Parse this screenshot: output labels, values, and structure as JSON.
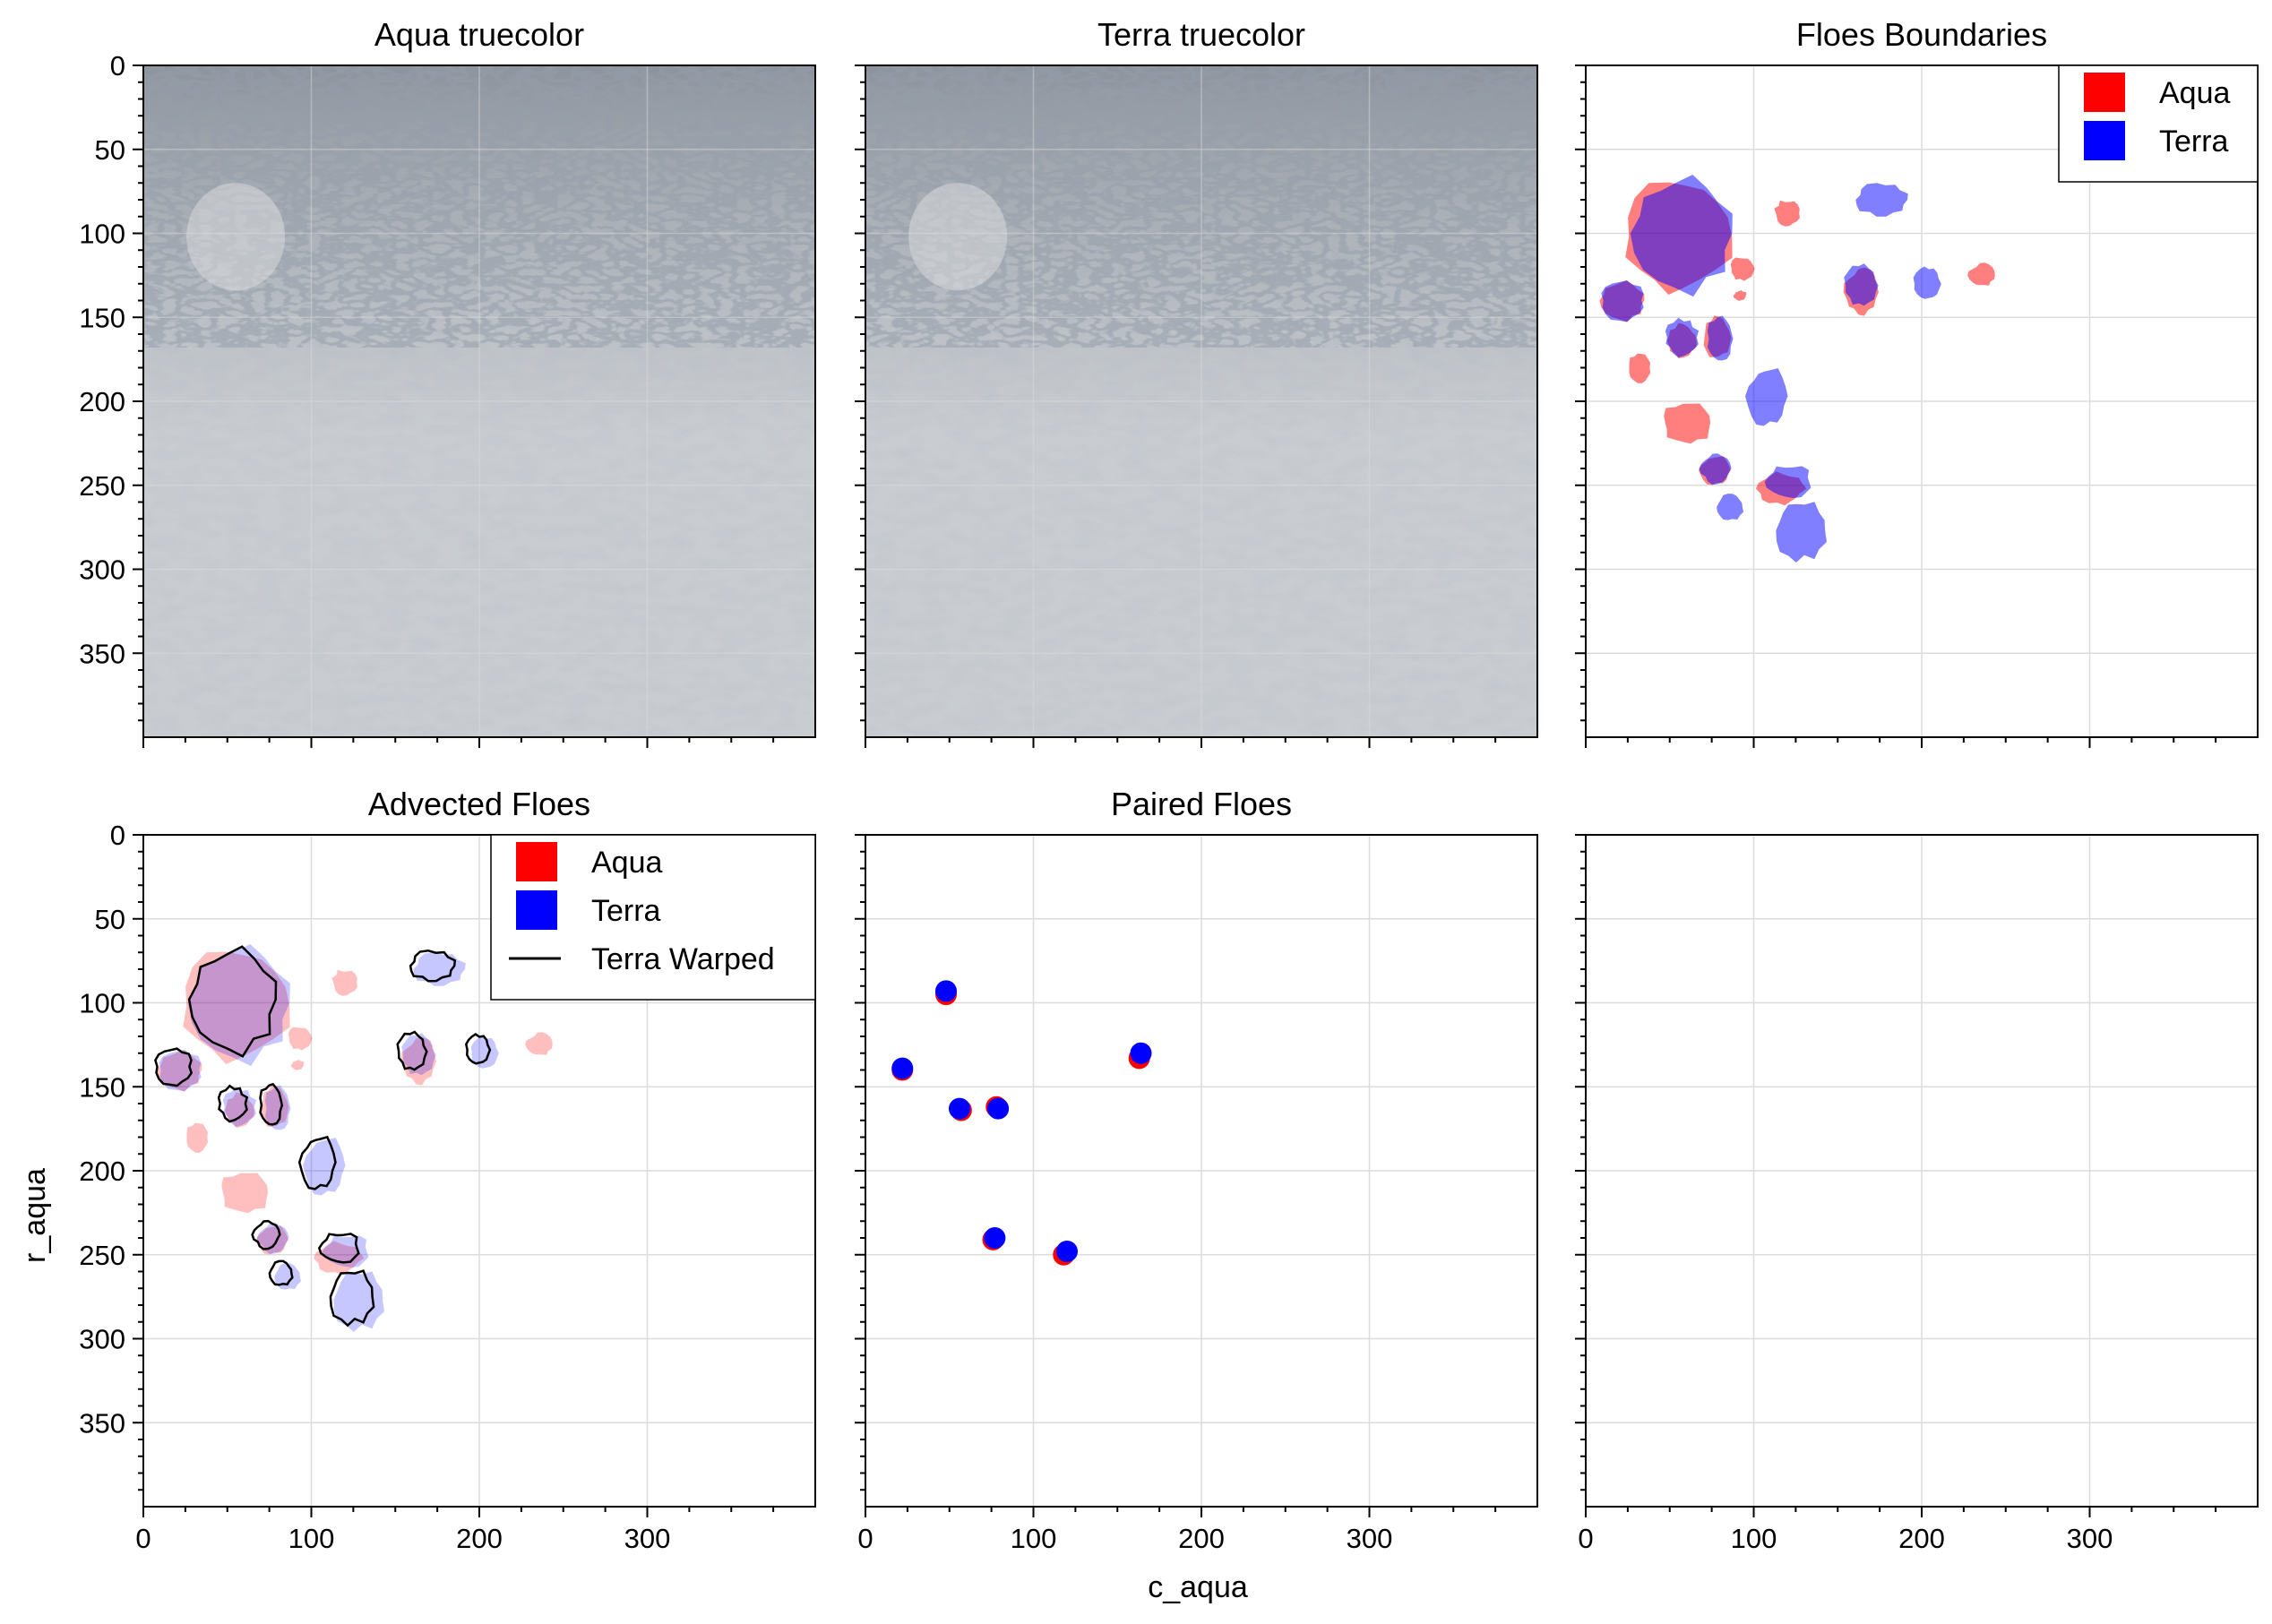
{
  "figure": {
    "xlabel": "c_aqua",
    "ylabel": "r_aqua"
  },
  "colors": {
    "aqua": "#ff0000",
    "terra": "#0000ff",
    "warped": "#000000",
    "grid": "#dcdcdc"
  },
  "panels": [
    {
      "id": "aqua-truecolor",
      "title": "Aqua truecolor",
      "type": "image"
    },
    {
      "id": "terra-truecolor",
      "title": "Terra truecolor",
      "type": "image"
    },
    {
      "id": "floes-boundaries",
      "title": "Floes Boundaries",
      "type": "overlay",
      "legend": [
        "Aqua",
        "Terra"
      ]
    },
    {
      "id": "advected-floes",
      "title": "Advected Floes",
      "type": "overlay",
      "legend": [
        "Aqua",
        "Terra",
        "Terra Warped"
      ]
    },
    {
      "id": "paired-floes",
      "title": "Paired Floes",
      "type": "scatter"
    },
    {
      "id": "empty",
      "title": "",
      "type": "empty"
    }
  ],
  "chart_data": {
    "type": "scatter",
    "axes": {
      "xlim": [
        0,
        400
      ],
      "ylim": [
        400,
        0
      ],
      "xticks": [
        "0",
        "100",
        "200",
        "300"
      ],
      "yticks": [
        "0",
        "50",
        "100",
        "150",
        "200",
        "250",
        "300",
        "350"
      ],
      "grid": true,
      "y_inverted": true
    },
    "floes": {
      "aqua": [
        {
          "c": 55,
          "r": 102,
          "rc": 32,
          "rr": 34
        },
        {
          "c": 93,
          "r": 121,
          "rc": 7,
          "rr": 7
        },
        {
          "c": 120,
          "r": 88,
          "rc": 8,
          "rr": 8
        },
        {
          "c": 236,
          "r": 125,
          "rc": 8,
          "rr": 7
        },
        {
          "c": 164,
          "r": 135,
          "rc": 10,
          "rr": 14
        },
        {
          "c": 92,
          "r": 137,
          "rc": 4,
          "rr": 3
        },
        {
          "c": 22,
          "r": 140,
          "rc": 14,
          "rr": 12
        },
        {
          "c": 57,
          "r": 164,
          "rc": 9,
          "rr": 10
        },
        {
          "c": 78,
          "r": 162,
          "rc": 8,
          "rr": 13
        },
        {
          "c": 32,
          "r": 180,
          "rc": 7,
          "rr": 9
        },
        {
          "c": 60,
          "r": 213,
          "rc": 15,
          "rr": 13
        },
        {
          "c": 77,
          "r": 241,
          "rc": 9,
          "rr": 9
        },
        {
          "c": 116,
          "r": 252,
          "rc": 14,
          "rr": 10
        }
      ],
      "terra": [
        {
          "c": 58,
          "r": 100,
          "rc": 32,
          "rr": 35
        },
        {
          "c": 176,
          "r": 80,
          "rc": 16,
          "rr": 10
        },
        {
          "c": 164,
          "r": 131,
          "rc": 10,
          "rr": 13
        },
        {
          "c": 203,
          "r": 130,
          "rc": 8,
          "rr": 10
        },
        {
          "c": 22,
          "r": 140,
          "rc": 13,
          "rr": 12
        },
        {
          "c": 57,
          "r": 162,
          "rc": 10,
          "rr": 11
        },
        {
          "c": 80,
          "r": 163,
          "rc": 8,
          "rr": 14
        },
        {
          "c": 108,
          "r": 197,
          "rc": 12,
          "rr": 18
        },
        {
          "c": 77,
          "r": 240,
          "rc": 9,
          "rr": 9
        },
        {
          "c": 121,
          "r": 248,
          "rc": 14,
          "rr": 10
        },
        {
          "c": 86,
          "r": 263,
          "rc": 8,
          "rr": 8
        },
        {
          "c": 128,
          "r": 277,
          "rc": 15,
          "rr": 18
        }
      ]
    },
    "paired": {
      "aqua": [
        {
          "c": 48,
          "r": 95
        },
        {
          "c": 22,
          "r": 140
        },
        {
          "c": 57,
          "r": 164
        },
        {
          "c": 78,
          "r": 162
        },
        {
          "c": 163,
          "r": 133
        },
        {
          "c": 76,
          "r": 241
        },
        {
          "c": 118,
          "r": 250
        }
      ],
      "terra": [
        {
          "c": 48,
          "r": 93
        },
        {
          "c": 22,
          "r": 139
        },
        {
          "c": 56,
          "r": 163
        },
        {
          "c": 79,
          "r": 163
        },
        {
          "c": 164,
          "r": 130
        },
        {
          "c": 77,
          "r": 240
        },
        {
          "c": 120,
          "r": 248
        }
      ]
    }
  }
}
